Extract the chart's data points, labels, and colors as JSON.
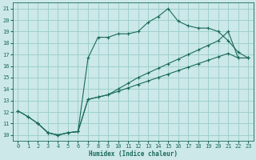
{
  "xlabel": "Humidex (Indice chaleur)",
  "bg_color": "#cce8e8",
  "grid_color": "#99cccc",
  "line_color": "#1a6b5a",
  "xlim": [
    -0.5,
    23.5
  ],
  "ylim": [
    9.5,
    21.5
  ],
  "xticks": [
    0,
    1,
    2,
    3,
    4,
    5,
    6,
    7,
    8,
    9,
    10,
    11,
    12,
    13,
    14,
    15,
    16,
    17,
    18,
    19,
    20,
    21,
    22,
    23
  ],
  "yticks": [
    10,
    11,
    12,
    13,
    14,
    15,
    16,
    17,
    18,
    19,
    20,
    21
  ],
  "line1_x": [
    0,
    1,
    2,
    3,
    4,
    5,
    6,
    7,
    8,
    9,
    10,
    11,
    12,
    13,
    14,
    15,
    16,
    17,
    18,
    19,
    20,
    21,
    22,
    23
  ],
  "line1_y": [
    12.1,
    11.6,
    11.0,
    10.2,
    10.0,
    10.2,
    10.3,
    16.7,
    18.5,
    18.5,
    18.8,
    18.8,
    19.0,
    19.8,
    20.3,
    21.0,
    19.9,
    19.5,
    19.3,
    19.3,
    19.0,
    18.2,
    17.2,
    16.7
  ],
  "line2_x": [
    0,
    1,
    2,
    3,
    4,
    5,
    6,
    7,
    8,
    9,
    10,
    11,
    12,
    13,
    14,
    15,
    16,
    17,
    18,
    19,
    20,
    21,
    22,
    23
  ],
  "line2_y": [
    12.1,
    11.6,
    11.0,
    10.2,
    10.0,
    10.2,
    10.3,
    13.1,
    13.3,
    13.5,
    14.0,
    14.5,
    15.0,
    15.4,
    15.8,
    16.2,
    16.6,
    17.0,
    17.4,
    17.8,
    18.2,
    19.0,
    16.7,
    16.7
  ],
  "line3_x": [
    2,
    3,
    4,
    5,
    6,
    7,
    8,
    9,
    10,
    11,
    12,
    13,
    14,
    15,
    16,
    17,
    18,
    19,
    20,
    21,
    22,
    23
  ],
  "line3_y": [
    11.0,
    10.2,
    10.0,
    10.2,
    10.3,
    13.1,
    13.3,
    13.5,
    13.8,
    14.1,
    14.4,
    14.7,
    15.0,
    15.3,
    15.6,
    15.9,
    16.2,
    16.5,
    16.8,
    17.1,
    16.7,
    16.7
  ]
}
